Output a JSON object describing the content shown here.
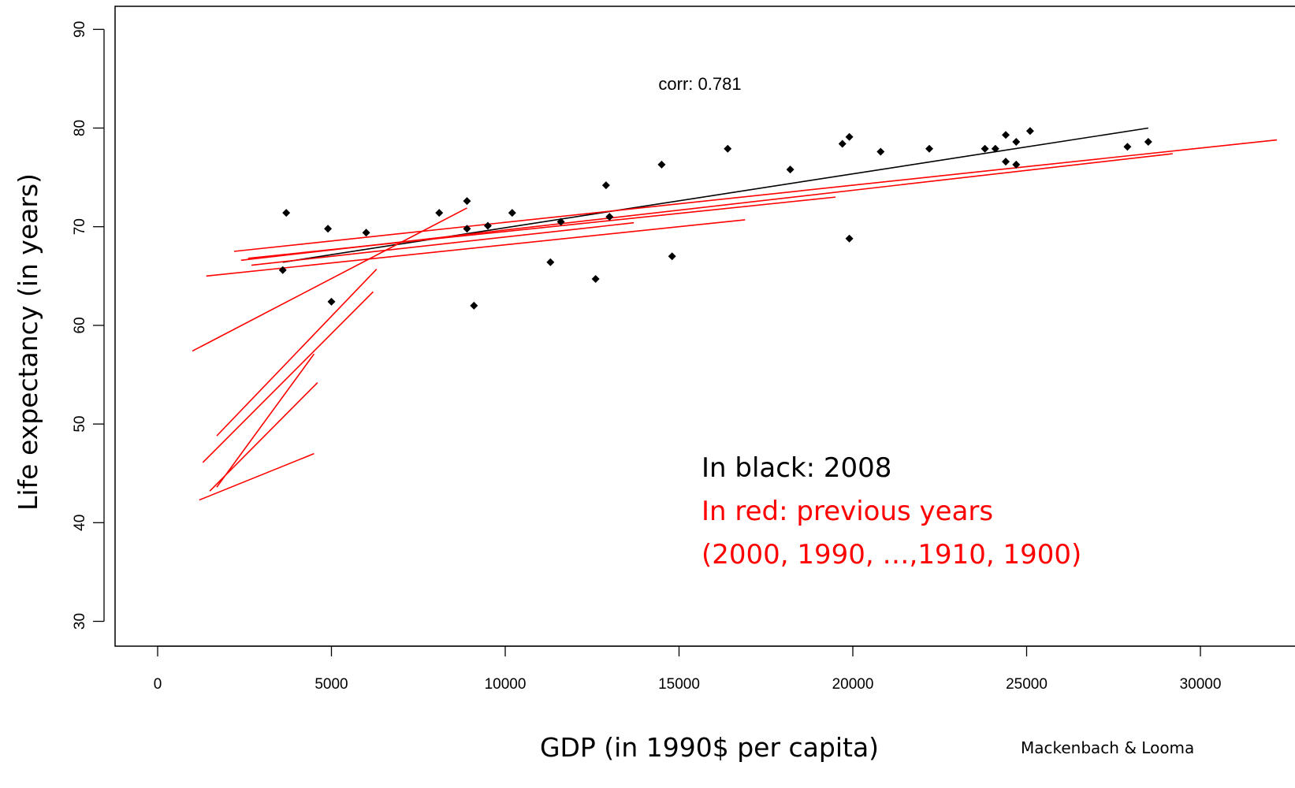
{
  "chart_data": {
    "type": "scatter",
    "xlabel": "GDP (in 1990$ per capita)",
    "ylabel": "Life expectancy (in years)",
    "xlim": [
      -2500,
      32200
    ],
    "ylim": [
      27.5,
      92.5
    ],
    "x_ticks": [
      0,
      5000,
      10000,
      15000,
      20000,
      25000,
      30000
    ],
    "y_ticks": [
      30,
      40,
      50,
      60,
      70,
      80,
      90
    ],
    "grid": false,
    "points": [
      {
        "x": 3600,
        "y": 65.6
      },
      {
        "x": 3700,
        "y": 71.4
      },
      {
        "x": 4900,
        "y": 69.8
      },
      {
        "x": 5000,
        "y": 62.4
      },
      {
        "x": 6000,
        "y": 69.4
      },
      {
        "x": 8100,
        "y": 71.4
      },
      {
        "x": 8900,
        "y": 72.6
      },
      {
        "x": 8900,
        "y": 69.8
      },
      {
        "x": 9100,
        "y": 62.0
      },
      {
        "x": 9500,
        "y": 70.1
      },
      {
        "x": 10200,
        "y": 71.4
      },
      {
        "x": 11300,
        "y": 66.4
      },
      {
        "x": 11600,
        "y": 70.5
      },
      {
        "x": 12600,
        "y": 64.7
      },
      {
        "x": 12900,
        "y": 74.2
      },
      {
        "x": 13000,
        "y": 71.0
      },
      {
        "x": 14500,
        "y": 76.3
      },
      {
        "x": 14800,
        "y": 67.0
      },
      {
        "x": 16400,
        "y": 77.9
      },
      {
        "x": 18200,
        "y": 75.8
      },
      {
        "x": 19700,
        "y": 78.4
      },
      {
        "x": 19900,
        "y": 79.1
      },
      {
        "x": 19900,
        "y": 68.8
      },
      {
        "x": 20800,
        "y": 77.6
      },
      {
        "x": 22200,
        "y": 77.9
      },
      {
        "x": 23800,
        "y": 77.9
      },
      {
        "x": 24100,
        "y": 77.9
      },
      {
        "x": 24400,
        "y": 79.3
      },
      {
        "x": 24400,
        "y": 76.6
      },
      {
        "x": 24700,
        "y": 78.6
      },
      {
        "x": 24700,
        "y": 76.3
      },
      {
        "x": 25100,
        "y": 79.7
      },
      {
        "x": 27900,
        "y": 78.1
      },
      {
        "x": 28500,
        "y": 78.6
      }
    ],
    "series": [
      {
        "color": "#000000",
        "x": [
          3600,
          28500
        ],
        "y": [
          66.4,
          80.0
        ]
      },
      {
        "color": "#ff0000",
        "x": [
          2200,
          32200
        ],
        "y": [
          67.5,
          78.8
        ]
      },
      {
        "color": "#ff0000",
        "x": [
          2400,
          29200
        ],
        "y": [
          66.6,
          77.4
        ]
      },
      {
        "color": "#ff0000",
        "x": [
          2600,
          19500
        ],
        "y": [
          66.8,
          73.0
        ]
      },
      {
        "color": "#ff0000",
        "x": [
          2700,
          13700
        ],
        "y": [
          66.1,
          70.4
        ]
      },
      {
        "color": "#ff0000",
        "x": [
          1400,
          16900
        ],
        "y": [
          65.0,
          70.7
        ]
      },
      {
        "color": "#ff0000",
        "x": [
          1000,
          8900
        ],
        "y": [
          57.4,
          71.9
        ]
      },
      {
        "color": "#ff0000",
        "x": [
          1700,
          6300
        ],
        "y": [
          48.8,
          65.7
        ]
      },
      {
        "color": "#ff0000",
        "x": [
          1300,
          6200
        ],
        "y": [
          46.1,
          63.4
        ]
      },
      {
        "color": "#ff0000",
        "x": [
          1500,
          4600
        ],
        "y": [
          43.2,
          54.2
        ]
      },
      {
        "color": "#ff0000",
        "x": [
          1700,
          4500
        ],
        "y": [
          43.6,
          57.1
        ]
      },
      {
        "color": "#ff0000",
        "x": [
          1200,
          4500
        ],
        "y": [
          42.3,
          47.0
        ]
      }
    ],
    "annotations": {
      "corr": "corr: 0.781",
      "black_note": "In black: 2008",
      "red_note_1": "In red: previous years",
      "red_note_2": "(2000, 1990, …,1910, 1900)",
      "source": "Mackenbach & Looma"
    }
  }
}
